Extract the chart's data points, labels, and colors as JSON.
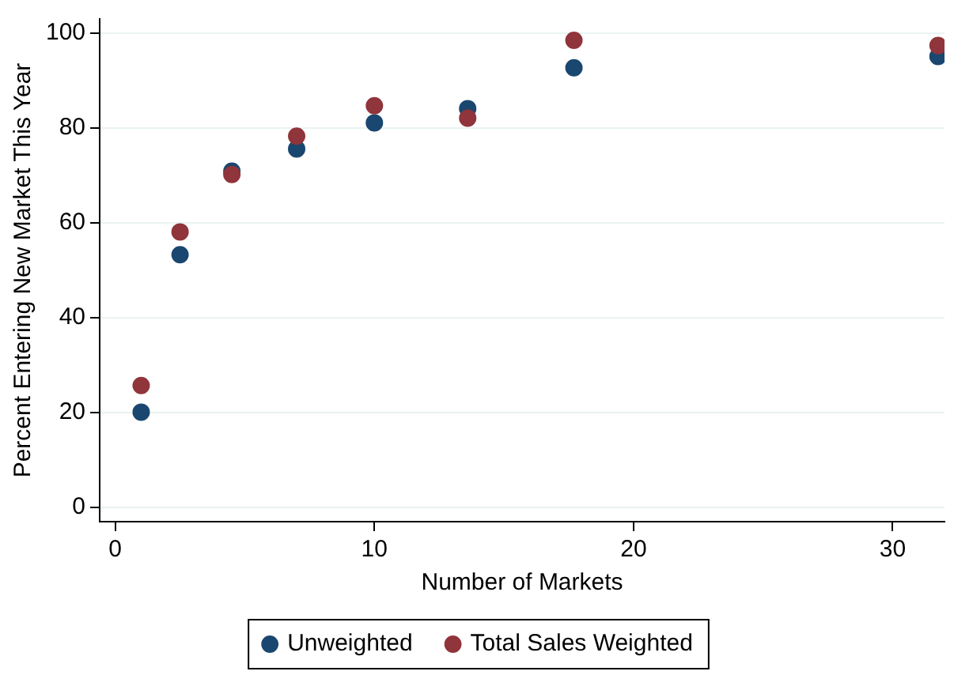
{
  "chart_data": {
    "type": "scatter",
    "xlabel": "Number of Markets",
    "ylabel": "Percent Entering New Market This Year",
    "x": [
      1,
      2.5,
      4.5,
      7,
      10,
      13.6,
      17.7,
      31.75
    ],
    "series": [
      {
        "name": "Unweighted",
        "color": "#1a476f",
        "values": [
          20.1,
          53.3,
          70.9,
          75.6,
          81.1,
          84.1,
          92.7,
          95.1
        ]
      },
      {
        "name": "Total Sales Weighted",
        "color": "#90353b",
        "values": [
          25.7,
          58.1,
          70.2,
          78.3,
          84.7,
          82.1,
          98.5,
          97.4
        ]
      }
    ],
    "xlim": [
      -0.6,
      32
    ],
    "xticks": [
      0,
      10,
      20,
      30
    ],
    "ylim": [
      -3,
      103
    ],
    "yticks": [
      0,
      20,
      40,
      60,
      80,
      100
    ],
    "grid": "y",
    "legend": "bottom",
    "marker": "circle"
  }
}
